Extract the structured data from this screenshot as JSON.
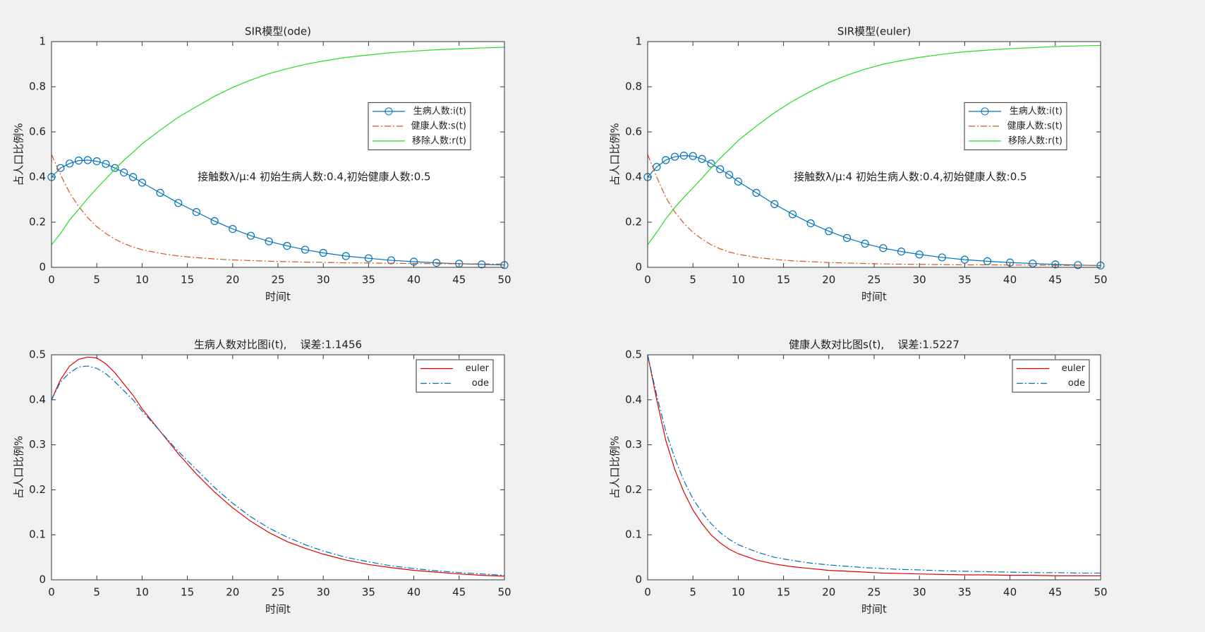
{
  "chart_data": [
    {
      "type": "line",
      "title": "SIR模型(ode)",
      "xlabel": "时间t",
      "ylabel": "占人口比例%",
      "annotation": "接触数λ/μ:4 初始生病人数:0.4,初始健康人数:0.5",
      "x": [
        0,
        1,
        2,
        3,
        4,
        5,
        6,
        7,
        8,
        9,
        10,
        12,
        14,
        16,
        18,
        20,
        22,
        24,
        26,
        28,
        30,
        32.5,
        35,
        37.5,
        40,
        42.5,
        45,
        47.5,
        50
      ],
      "series": [
        {
          "name": "生病人数:i(t)",
          "color": "#0072bd",
          "dash": "solid",
          "marker": "o",
          "values": [
            0.4,
            0.44,
            0.46,
            0.473,
            0.475,
            0.47,
            0.458,
            0.44,
            0.42,
            0.4,
            0.375,
            0.33,
            0.285,
            0.245,
            0.205,
            0.17,
            0.14,
            0.115,
            0.095,
            0.078,
            0.064,
            0.05,
            0.04,
            0.031,
            0.025,
            0.02,
            0.016,
            0.013,
            0.01
          ]
        },
        {
          "name": "健康人数:s(t)",
          "color": "#d95319",
          "dash": "dashdot",
          "marker": "none",
          "values": [
            0.5,
            0.41,
            0.33,
            0.27,
            0.22,
            0.18,
            0.15,
            0.125,
            0.105,
            0.09,
            0.078,
            0.062,
            0.05,
            0.043,
            0.037,
            0.033,
            0.03,
            0.027,
            0.025,
            0.023,
            0.022,
            0.02,
            0.019,
            0.018,
            0.017,
            0.016,
            0.016,
            0.015,
            0.015
          ]
        },
        {
          "name": "移除人数:r(t)",
          "color": "#22dd22",
          "dash": "solid",
          "marker": "none",
          "values": [
            0.1,
            0.15,
            0.21,
            0.257,
            0.305,
            0.35,
            0.392,
            0.435,
            0.475,
            0.51,
            0.547,
            0.608,
            0.665,
            0.712,
            0.758,
            0.797,
            0.83,
            0.858,
            0.88,
            0.899,
            0.914,
            0.93,
            0.941,
            0.951,
            0.958,
            0.964,
            0.968,
            0.972,
            0.975
          ]
        }
      ],
      "xlim": [
        0,
        50
      ],
      "xticks": [
        0,
        5,
        10,
        15,
        20,
        25,
        30,
        35,
        40,
        45,
        50
      ],
      "ylim": [
        0,
        1
      ],
      "yticks": [
        0,
        0.2,
        0.4,
        0.6,
        0.8,
        1
      ],
      "legend": "center right"
    },
    {
      "type": "line",
      "title": "SIR模型(euler)",
      "xlabel": "时间t",
      "ylabel": "占人口比例%",
      "annotation": "接触数λ/μ:4 初始生病人数:0.4,初始健康人数:0.5",
      "x": [
        0,
        1,
        2,
        3,
        4,
        5,
        6,
        7,
        8,
        9,
        10,
        12,
        14,
        16,
        18,
        20,
        22,
        24,
        26,
        28,
        30,
        32.5,
        35,
        37.5,
        40,
        42.5,
        45,
        47.5,
        50
      ],
      "series": [
        {
          "name": "生病人数:i(t)",
          "color": "#0072bd",
          "dash": "solid",
          "marker": "o",
          "values": [
            0.4,
            0.445,
            0.475,
            0.49,
            0.495,
            0.493,
            0.48,
            0.46,
            0.435,
            0.41,
            0.38,
            0.33,
            0.28,
            0.235,
            0.195,
            0.16,
            0.13,
            0.105,
            0.085,
            0.07,
            0.057,
            0.044,
            0.034,
            0.027,
            0.021,
            0.017,
            0.013,
            0.01,
            0.008
          ]
        },
        {
          "name": "健康人数:s(t)",
          "color": "#d95319",
          "dash": "dashdot",
          "marker": "none",
          "values": [
            0.5,
            0.4,
            0.31,
            0.245,
            0.195,
            0.155,
            0.125,
            0.1,
            0.082,
            0.068,
            0.058,
            0.044,
            0.035,
            0.029,
            0.025,
            0.021,
            0.019,
            0.017,
            0.015,
            0.014,
            0.013,
            0.012,
            0.011,
            0.011,
            0.01,
            0.01,
            0.009,
            0.009,
            0.009
          ]
        },
        {
          "name": "移除人数:r(t)",
          "color": "#22dd22",
          "dash": "solid",
          "marker": "none",
          "values": [
            0.1,
            0.155,
            0.215,
            0.265,
            0.31,
            0.352,
            0.395,
            0.44,
            0.483,
            0.522,
            0.562,
            0.626,
            0.685,
            0.736,
            0.78,
            0.819,
            0.851,
            0.878,
            0.9,
            0.916,
            0.93,
            0.944,
            0.955,
            0.962,
            0.969,
            0.973,
            0.978,
            0.981,
            0.983
          ]
        }
      ],
      "xlim": [
        0,
        50
      ],
      "xticks": [
        0,
        5,
        10,
        15,
        20,
        25,
        30,
        35,
        40,
        45,
        50
      ],
      "ylim": [
        0,
        1
      ],
      "yticks": [
        0,
        0.2,
        0.4,
        0.6,
        0.8,
        1
      ],
      "legend": "center right"
    },
    {
      "type": "line",
      "title": "生病人数对比图i(t),    误差:1.1456",
      "xlabel": "时间t",
      "ylabel": "占人口比例%",
      "x": [
        0,
        1,
        2,
        3,
        4,
        5,
        6,
        7,
        8,
        9,
        10,
        12,
        14,
        16,
        18,
        20,
        22,
        24,
        26,
        28,
        30,
        32.5,
        35,
        37.5,
        40,
        42.5,
        45,
        47.5,
        50
      ],
      "series": [
        {
          "name": "euler",
          "color": "#e00000",
          "dash": "solid",
          "marker": "none",
          "values": [
            0.4,
            0.445,
            0.475,
            0.49,
            0.495,
            0.493,
            0.48,
            0.46,
            0.435,
            0.41,
            0.38,
            0.33,
            0.28,
            0.235,
            0.195,
            0.16,
            0.13,
            0.105,
            0.085,
            0.07,
            0.057,
            0.044,
            0.034,
            0.027,
            0.021,
            0.017,
            0.013,
            0.01,
            0.008
          ]
        },
        {
          "name": "ode",
          "color": "#0072bd",
          "dash": "dashdot",
          "marker": "none",
          "values": [
            0.4,
            0.44,
            0.46,
            0.473,
            0.475,
            0.47,
            0.458,
            0.44,
            0.42,
            0.4,
            0.375,
            0.33,
            0.285,
            0.245,
            0.205,
            0.17,
            0.14,
            0.115,
            0.095,
            0.078,
            0.064,
            0.05,
            0.04,
            0.031,
            0.025,
            0.02,
            0.016,
            0.013,
            0.01
          ]
        }
      ],
      "xlim": [
        0,
        50
      ],
      "xticks": [
        0,
        5,
        10,
        15,
        20,
        25,
        30,
        35,
        40,
        45,
        50
      ],
      "ylim": [
        0,
        0.5
      ],
      "yticks": [
        0,
        0.1,
        0.2,
        0.3,
        0.4,
        0.5
      ],
      "legend": "upper right"
    },
    {
      "type": "line",
      "title": "健康人数对比图s(t),    误差:1.5227",
      "xlabel": "时间t",
      "ylabel": "占人口比例%",
      "x": [
        0,
        1,
        2,
        3,
        4,
        5,
        6,
        7,
        8,
        9,
        10,
        12,
        14,
        16,
        18,
        20,
        22,
        24,
        26,
        28,
        30,
        32.5,
        35,
        37.5,
        40,
        42.5,
        45,
        47.5,
        50
      ],
      "series": [
        {
          "name": "euler",
          "color": "#e00000",
          "dash": "solid",
          "marker": "none",
          "values": [
            0.5,
            0.4,
            0.31,
            0.245,
            0.195,
            0.155,
            0.125,
            0.1,
            0.082,
            0.068,
            0.058,
            0.044,
            0.035,
            0.029,
            0.025,
            0.021,
            0.019,
            0.017,
            0.015,
            0.014,
            0.013,
            0.012,
            0.011,
            0.011,
            0.01,
            0.01,
            0.009,
            0.009,
            0.009
          ]
        },
        {
          "name": "ode",
          "color": "#0072bd",
          "dash": "dashdot",
          "marker": "none",
          "values": [
            0.5,
            0.41,
            0.33,
            0.27,
            0.22,
            0.18,
            0.15,
            0.125,
            0.105,
            0.09,
            0.078,
            0.062,
            0.05,
            0.043,
            0.037,
            0.033,
            0.03,
            0.027,
            0.025,
            0.023,
            0.022,
            0.02,
            0.019,
            0.018,
            0.017,
            0.016,
            0.016,
            0.015,
            0.015
          ]
        }
      ],
      "xlim": [
        0,
        50
      ],
      "xticks": [
        0,
        5,
        10,
        15,
        20,
        25,
        30,
        35,
        40,
        45,
        50
      ],
      "ylim": [
        0,
        0.5
      ],
      "yticks": [
        0,
        0.1,
        0.2,
        0.3,
        0.4,
        0.5
      ],
      "legend": "upper right"
    }
  ]
}
